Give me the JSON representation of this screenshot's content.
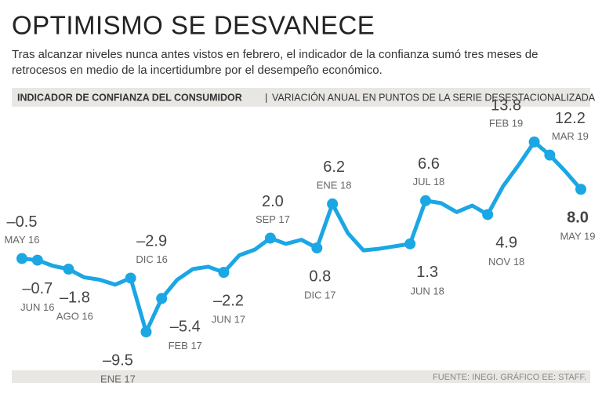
{
  "chart_data": {
    "type": "line",
    "title": "OPTIMISMO SE DESVANECE",
    "subtitle": [
      "Tras alcanzar niveles nunca antes vistos en febrero, el indicador de la confianza sumó tres meses de",
      "retrocesos en medio de la incertidumbre por el desempeño económico."
    ],
    "header": "INDICADOR DE CONFIANZA DEL CONSUMIDOR",
    "header_note": "VARIACIÓN ANUAL EN PUNTOS DE LA SERIE DESESTACIONALIZADA",
    "source": "FUENTE: INEGI. GRÁFICO EE: STAFF.",
    "color": "#1ba6e4",
    "categories": [
      "MAY 16",
      "JUN 16",
      null,
      "AGO 16",
      null,
      null,
      null,
      "DIC 16",
      "ENE 17",
      "FEB 17",
      null,
      null,
      null,
      "JUN 17",
      null,
      null,
      "SEP 17",
      null,
      null,
      "DIC 17",
      "ENE 18",
      null,
      null,
      null,
      null,
      "JUN 18",
      "JUL 18",
      null,
      null,
      null,
      "NOV 18",
      null,
      null,
      "FEB 19",
      "MAR 19",
      null,
      "MAY 19"
    ],
    "values": [
      -0.5,
      -0.7,
      -1.4,
      -1.8,
      -2.8,
      -3.1,
      -3.7,
      -2.9,
      -9.5,
      -5.4,
      -3.1,
      -1.8,
      -1.5,
      -2.2,
      -0.1,
      0.6,
      2.0,
      1.3,
      1.8,
      0.8,
      6.2,
      2.6,
      0.5,
      0.7,
      1.0,
      1.3,
      6.6,
      6.3,
      5.2,
      6.0,
      4.9,
      8.4,
      11.0,
      13.8,
      12.2,
      10.2,
      8.0
    ],
    "value_labels": [
      "–0.5",
      "–0.7",
      null,
      "–1.8",
      null,
      null,
      null,
      "–2.9",
      "–9.5",
      "–5.4",
      null,
      null,
      null,
      "–2.2",
      null,
      null,
      "2.0",
      null,
      null,
      "0.8",
      "6.2",
      null,
      null,
      null,
      null,
      "1.3",
      "6.6",
      null,
      null,
      null,
      "4.9",
      null,
      null,
      "13.8",
      "12.2",
      null,
      "8.0"
    ]
  }
}
